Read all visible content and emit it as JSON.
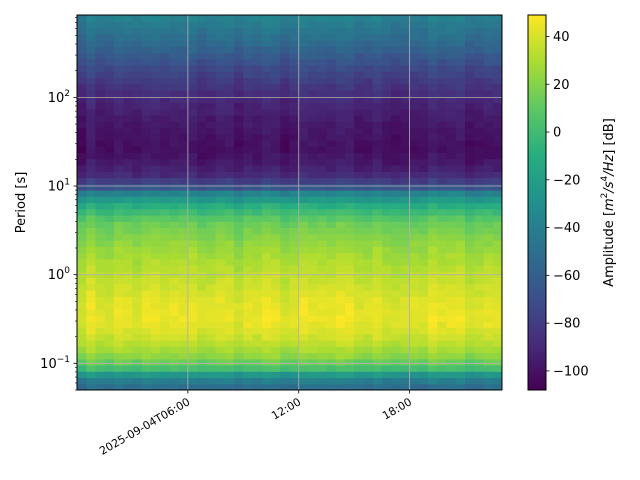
{
  "chart_data": {
    "type": "heatmap",
    "subtype": "spectrogram",
    "title": "",
    "xlabel": "",
    "ylabel": "Period [s]",
    "x_axis": {
      "kind": "time",
      "start": "2025-09-04T00:00",
      "end": "2025-09-04T23:00",
      "ticks": [
        {
          "value": "2025-09-04T06:00",
          "label": "2025-09-04T06:00"
        },
        {
          "value": "2025-09-04T12:00",
          "label": "12:00"
        },
        {
          "value": "2025-09-04T18:00",
          "label": "18:00"
        }
      ]
    },
    "y_axis": {
      "scale": "log",
      "range": [
        0.05,
        850
      ],
      "ticks": [
        {
          "value": 0.1,
          "base": "10",
          "exp": "−1"
        },
        {
          "value": 1,
          "base": "10",
          "exp": "0"
        },
        {
          "value": 10,
          "base": "10",
          "exp": "1"
        },
        {
          "value": 100,
          "base": "10",
          "exp": "2"
        }
      ]
    },
    "grid": true,
    "colormap": "viridis",
    "colorbar": {
      "label_prefix": "Amplitude [",
      "label_math": "m",
      "label_sup1": "2",
      "label_mid": "/s",
      "label_sup2": "4",
      "label_end": "/Hz",
      "label_suffix": "] [dB]",
      "range": [
        -108,
        49
      ],
      "ticks": [
        "40",
        "20",
        "0",
        "−20",
        "−40",
        "−60",
        "−80",
        "−100"
      ],
      "tick_values": [
        40,
        20,
        0,
        -20,
        -40,
        -60,
        -80,
        -100
      ]
    },
    "period_profile": [
      {
        "period": 0.05,
        "db": -55
      },
      {
        "period": 0.062,
        "db": -45
      },
      {
        "period": 0.075,
        "db": -25
      },
      {
        "period": 0.09,
        "db": 5
      },
      {
        "period": 0.12,
        "db": 22
      },
      {
        "period": 0.18,
        "db": 35
      },
      {
        "period": 0.3,
        "db": 44
      },
      {
        "period": 0.5,
        "db": 42
      },
      {
        "period": 1,
        "db": 34
      },
      {
        "period": 2,
        "db": 25
      },
      {
        "period": 4,
        "db": 12
      },
      {
        "period": 6,
        "db": -10
      },
      {
        "period": 8.5,
        "db": -40
      },
      {
        "period": 10,
        "db": -70
      },
      {
        "period": 14,
        "db": -92
      },
      {
        "period": 25,
        "db": -102
      },
      {
        "period": 50,
        "db": -98
      },
      {
        "period": 100,
        "db": -90
      },
      {
        "period": 200,
        "db": -75
      },
      {
        "period": 400,
        "db": -55
      },
      {
        "period": 850,
        "db": -38
      }
    ]
  }
}
